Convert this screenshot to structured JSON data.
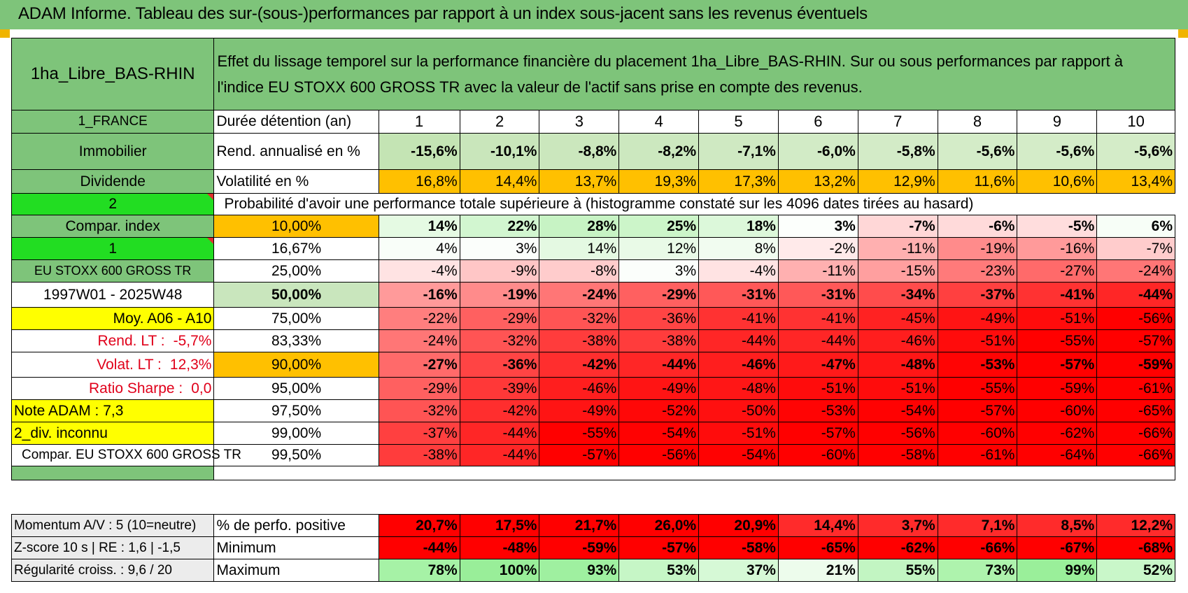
{
  "title": "ADAM Informe. Tableau des sur-(sous-)performances par rapport à un index sous-jacent sans les revenus éventuels",
  "placement": "1ha_Libre_BAS-RHIN",
  "description": "Effet du lissage temporel sur la performance financière du placement 1ha_Libre_BAS-RHIN. Sur ou sous performances par rapport à l'indice EU STOXX 600 GROSS TR avec la valeur de l'actif sans prise en compte des revenus.",
  "side": {
    "country": "1_FRANCE",
    "category": "Immobilier",
    "dividend": "Dividende",
    "two": "2",
    "compar_index": "Compar. index",
    "one": "1",
    "index_name": "EU STOXX 600 GROSS TR",
    "period": "1997W01 - 2025W48",
    "moy": "Moy. A06 - A10",
    "rend_lt_label": "Rend. LT :",
    "rend_lt_value": "-5,7%",
    "volat_lt_label": "Volat. LT :",
    "volat_lt_value": "12,3%",
    "sharpe_label": "Ratio Sharpe :",
    "sharpe_value": "0,0",
    "note": "Note ADAM : 7,3",
    "div": "2_div. inconnu",
    "compar_full": "Compar. EU STOXX 600 GROSS TR"
  },
  "header": {
    "duration_label": "Durée détention (an)",
    "years": [
      "1",
      "2",
      "3",
      "4",
      "5",
      "6",
      "7",
      "8",
      "9",
      "10"
    ]
  },
  "rend": {
    "label": "Rend. annualisé en %",
    "values": [
      "-15,6%",
      "-10,1%",
      "-8,8%",
      "-8,2%",
      "-7,1%",
      "-6,0%",
      "-5,8%",
      "-5,6%",
      "-5,6%",
      "-5,6%"
    ]
  },
  "vol": {
    "label": "Volatilité en %",
    "values": [
      "16,8%",
      "14,4%",
      "13,7%",
      "19,3%",
      "17,3%",
      "13,2%",
      "12,9%",
      "11,6%",
      "10,6%",
      "13,4%"
    ]
  },
  "proba_label": "Probabilité d'avoir une performance totale supérieure à (histogramme constaté sur les 4096 dates tirées au hasard)",
  "colors": {
    "rend_bg": [
      "#c4e4b4",
      "#c9e6bb",
      "#cbe7bd",
      "#cce8bf",
      "#cfe9c2",
      "#d2ebc6",
      "#d3ebc7",
      "#d4ecc8",
      "#d4ecc8",
      "#d4ecc8"
    ],
    "perf_pos": [
      "#ff0000",
      "#ff0000",
      "#ff0000",
      "#ff0000",
      "#ff0000",
      "#ff2b2b",
      "#ff2b2b",
      "#ff2b2b",
      "#ff2b2b",
      "#ff2b2b"
    ],
    "minimum": [
      "#ff0000",
      "#ff0000",
      "#ff0000",
      "#ff0000",
      "#ff0000",
      "#ff0000",
      "#ff0000",
      "#ff0000",
      "#ff0000",
      "#ff0000"
    ],
    "maximum": [
      "#a6f2a6",
      "#99ee99",
      "#9ff0a0",
      "#c6f6c6",
      "#d6f9d6",
      "#edfcec",
      "#c2f5c2",
      "#aef3ad",
      "#9aef9a",
      "#c9f7c9"
    ]
  },
  "pct_rows": [
    {
      "pct": "10,00%",
      "pct_style": "org",
      "bold": true,
      "values": [
        "14%",
        "22%",
        "28%",
        "25%",
        "18%",
        "3%",
        "-7%",
        "-6%",
        "-5%",
        "6%"
      ],
      "bgs": [
        "#e5fae3",
        "#d2f6d0",
        "#c7f3c4",
        "#ccf5c9",
        "#dcf8da",
        "#fcfffc",
        "#ffd7d7",
        "#ffdada",
        "#ffdddd",
        "#f7fef7"
      ]
    },
    {
      "pct": "16,67%",
      "pct_style": "",
      "bold": false,
      "values": [
        "4%",
        "3%",
        "14%",
        "12%",
        "8%",
        "-2%",
        "-11%",
        "-19%",
        "-16%",
        "-7%"
      ],
      "bgs": [
        "#f9fef9",
        "#fbfefb",
        "#e4f9e2",
        "#e9faE7",
        "#f1fcf0",
        "#ffeaea",
        "#ffb0b0",
        "#ff8b8b",
        "#ff9a9a",
        "#ffcccc"
      ]
    },
    {
      "pct": "25,00%",
      "pct_style": "",
      "bold": false,
      "values": [
        "-4%",
        "-9%",
        "-8%",
        "3%",
        "-4%",
        "-11%",
        "-15%",
        "-23%",
        "-27%",
        "-24%"
      ],
      "bgs": [
        "#ffe3e3",
        "#ffc6c6",
        "#ffcccc",
        "#fbfefb",
        "#ffe3e3",
        "#ffb0b0",
        "#ff9f9f",
        "#ff7a7a",
        "#ff6a6a",
        "#ff7676"
      ]
    },
    {
      "pct": "50,00%",
      "pct_style": "lg big",
      "bold": true,
      "big": true,
      "values": [
        "-16%",
        "-19%",
        "-24%",
        "-29%",
        "-31%",
        "-31%",
        "-34%",
        "-37%",
        "-41%",
        "-44%"
      ],
      "bgs": [
        "#ff9a9a",
        "#ff8b8b",
        "#ff7676",
        "#ff6060",
        "#ff5858",
        "#ff5858",
        "#ff4c4c",
        "#ff4040",
        "#ff3232",
        "#ff2626"
      ]
    },
    {
      "pct": "75,00%",
      "pct_style": "",
      "bold": false,
      "values": [
        "-22%",
        "-29%",
        "-32%",
        "-36%",
        "-41%",
        "-41%",
        "-45%",
        "-49%",
        "-51%",
        "-56%"
      ],
      "bgs": [
        "#ff7e7e",
        "#ff6060",
        "#ff5454",
        "#ff4444",
        "#ff3232",
        "#ff3232",
        "#ff2222",
        "#ff1414",
        "#ff0c0c",
        "#ff0000"
      ]
    },
    {
      "pct": "83,33%",
      "pct_style": "",
      "bold": false,
      "values": [
        "-24%",
        "-32%",
        "-38%",
        "-38%",
        "-44%",
        "-44%",
        "-46%",
        "-51%",
        "-55%",
        "-57%"
      ],
      "bgs": [
        "#ff7676",
        "#ff5454",
        "#ff3c3c",
        "#ff3c3c",
        "#ff2626",
        "#ff2626",
        "#ff1e1e",
        "#ff0c0c",
        "#ff0000",
        "#ff0000"
      ]
    },
    {
      "pct": "90,00%",
      "pct_style": "org",
      "bold": true,
      "values": [
        "-27%",
        "-36%",
        "-42%",
        "-44%",
        "-46%",
        "-47%",
        "-48%",
        "-53%",
        "-57%",
        "-59%"
      ],
      "bgs": [
        "#ff6a6a",
        "#ff4444",
        "#ff2e2e",
        "#ff2626",
        "#ff1e1e",
        "#ff1a1a",
        "#ff1616",
        "#ff0404",
        "#ff0000",
        "#ff0000"
      ]
    },
    {
      "pct": "95,00%",
      "pct_style": "",
      "bold": false,
      "values": [
        "-29%",
        "-39%",
        "-46%",
        "-49%",
        "-48%",
        "-51%",
        "-51%",
        "-55%",
        "-59%",
        "-61%"
      ],
      "bgs": [
        "#ff6060",
        "#ff3838",
        "#ff1e1e",
        "#ff1414",
        "#ff1616",
        "#ff0c0c",
        "#ff0c0c",
        "#ff0000",
        "#ff0000",
        "#ff0000"
      ]
    },
    {
      "pct": "97,50%",
      "pct_style": "",
      "bold": false,
      "values": [
        "-32%",
        "-42%",
        "-49%",
        "-52%",
        "-50%",
        "-53%",
        "-54%",
        "-57%",
        "-60%",
        "-65%"
      ],
      "bgs": [
        "#ff5454",
        "#ff2e2e",
        "#ff1414",
        "#ff0808",
        "#ff1010",
        "#ff0404",
        "#ff0202",
        "#ff0000",
        "#ff0000",
        "#ff0000"
      ]
    },
    {
      "pct": "99,00%",
      "pct_style": "",
      "bold": false,
      "values": [
        "-37%",
        "-44%",
        "-55%",
        "-54%",
        "-51%",
        "-57%",
        "-56%",
        "-60%",
        "-62%",
        "-66%"
      ],
      "bgs": [
        "#ff4040",
        "#ff2626",
        "#ff0000",
        "#ff0202",
        "#ff0c0c",
        "#ff0000",
        "#ff0000",
        "#ff0000",
        "#ff0000",
        "#ff0000"
      ]
    },
    {
      "pct": "99,50%",
      "pct_style": "",
      "bold": false,
      "values": [
        "-38%",
        "-44%",
        "-57%",
        "-56%",
        "-54%",
        "-60%",
        "-58%",
        "-61%",
        "-64%",
        "-66%"
      ],
      "bgs": [
        "#ff3c3c",
        "#ff2626",
        "#ff0000",
        "#ff0000",
        "#ff0202",
        "#ff0000",
        "#ff0000",
        "#ff0000",
        "#ff0000",
        "#ff0000"
      ]
    }
  ],
  "bottom": [
    {
      "left": "Momentum A/V : 5 (10=neutre)",
      "label": "% de perfo. positive",
      "values": [
        "20,7%",
        "17,5%",
        "21,7%",
        "26,0%",
        "20,9%",
        "14,4%",
        "3,7%",
        "7,1%",
        "8,5%",
        "12,2%"
      ],
      "colorkey": "perf_pos"
    },
    {
      "left": "Z-score 10 s | RE : 1,6 | -1,5",
      "label": "Minimum",
      "values": [
        "-44%",
        "-48%",
        "-59%",
        "-57%",
        "-58%",
        "-65%",
        "-62%",
        "-66%",
        "-67%",
        "-68%"
      ],
      "colorkey": "minimum"
    },
    {
      "left": "Régularité croiss. : 9,6 / 20",
      "label": "Maximum",
      "values": [
        "78%",
        "100%",
        "93%",
        "53%",
        "37%",
        "21%",
        "55%",
        "73%",
        "99%",
        "52%"
      ],
      "colorkey": "maximum"
    }
  ]
}
